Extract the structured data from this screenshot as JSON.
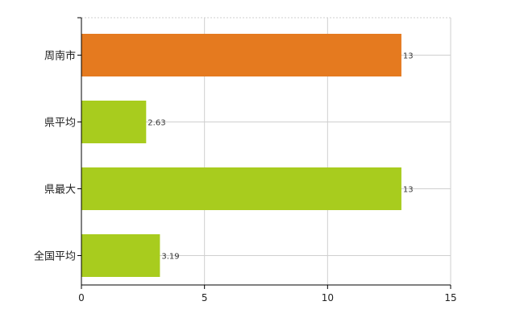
{
  "chart_data": {
    "type": "bar",
    "orientation": "horizontal",
    "categories": [
      "周南市",
      "県平均",
      "県最大",
      "全国平均"
    ],
    "values": [
      13,
      2.63,
      13,
      3.19
    ],
    "data_labels": [
      "13",
      "2.63",
      "13",
      "3.19"
    ],
    "bar_colors": [
      "#e57a1f",
      "#a8cc1e",
      "#a8cc1e",
      "#a8cc1e"
    ],
    "xlim": [
      0,
      15
    ],
    "xticks": [
      0,
      5,
      10,
      15
    ],
    "xtick_labels": [
      "0",
      "5",
      "10",
      "15"
    ],
    "grid": true,
    "title": "",
    "xlabel": "",
    "ylabel": ""
  }
}
